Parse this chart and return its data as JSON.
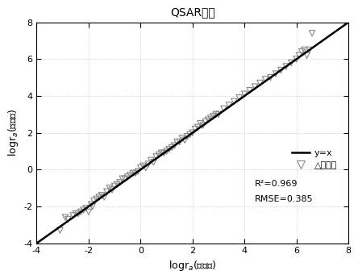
{
  "title": "QSAR模型",
  "xlabel": "logr$_a$(实测值)",
  "ylabel": "logr$_a$(预测值)",
  "xlim": [
    -4,
    8
  ],
  "ylim": [
    -4,
    8
  ],
  "xticks": [
    -4,
    -2,
    0,
    2,
    4,
    6,
    8
  ],
  "yticks": [
    -4,
    -2,
    0,
    2,
    4,
    6,
    8
  ],
  "line_color": "black",
  "marker_color": "#888888",
  "legend_line": "y=x",
  "legend_marker": "△验证集",
  "r2_text": "R²=0.969",
  "rmse_text": "RMSE=0.385",
  "bg_color": "#f0f0f0",
  "scatter_x": [
    -3.1,
    -2.9,
    -2.8,
    -2.6,
    -2.5,
    -2.4,
    -2.3,
    -2.2,
    -2.1,
    -2.0,
    -1.9,
    -1.85,
    -1.8,
    -1.7,
    -1.6,
    -1.5,
    -1.4,
    -1.3,
    -1.2,
    -1.1,
    -1.0,
    -0.9,
    -0.8,
    -0.7,
    -0.6,
    -0.5,
    -0.4,
    -0.3,
    -0.2,
    -0.1,
    0.0,
    0.1,
    0.2,
    0.3,
    0.4,
    0.5,
    0.6,
    0.7,
    0.8,
    0.9,
    1.0,
    1.1,
    1.2,
    1.3,
    1.4,
    1.5,
    1.6,
    1.7,
    1.8,
    1.9,
    2.0,
    2.1,
    2.2,
    2.3,
    2.4,
    2.5,
    2.6,
    2.7,
    2.8,
    2.9,
    3.0,
    3.2,
    3.4,
    3.6,
    3.8,
    4.0,
    4.2,
    4.4,
    4.6,
    4.8,
    5.0,
    5.2,
    5.4,
    5.6,
    5.8,
    6.0,
    6.1,
    6.2,
    6.3,
    6.4,
    6.5,
    6.6
  ],
  "scatter_y": [
    -3.3,
    -2.6,
    -2.7,
    -2.5,
    -2.4,
    -2.4,
    -2.3,
    -2.2,
    -2.1,
    -2.3,
    -1.9,
    -2.0,
    -1.7,
    -1.6,
    -1.5,
    -1.4,
    -1.5,
    -1.2,
    -1.0,
    -1.1,
    -0.9,
    -0.8,
    -0.7,
    -0.5,
    -0.5,
    -0.4,
    -0.3,
    -0.2,
    -0.2,
    -0.1,
    0.1,
    0.2,
    0.1,
    0.3,
    0.5,
    0.4,
    0.7,
    0.8,
    0.9,
    0.9,
    1.0,
    1.1,
    1.2,
    1.3,
    1.5,
    1.5,
    1.7,
    1.6,
    1.8,
    1.9,
    2.0,
    2.2,
    2.3,
    2.5,
    2.4,
    2.6,
    2.7,
    2.8,
    2.9,
    3.0,
    3.0,
    3.3,
    3.5,
    3.7,
    3.9,
    4.1,
    4.3,
    4.5,
    4.7,
    4.9,
    5.0,
    5.2,
    5.4,
    5.6,
    5.8,
    6.0,
    6.2,
    6.4,
    6.5,
    6.2,
    6.5,
    7.4
  ]
}
